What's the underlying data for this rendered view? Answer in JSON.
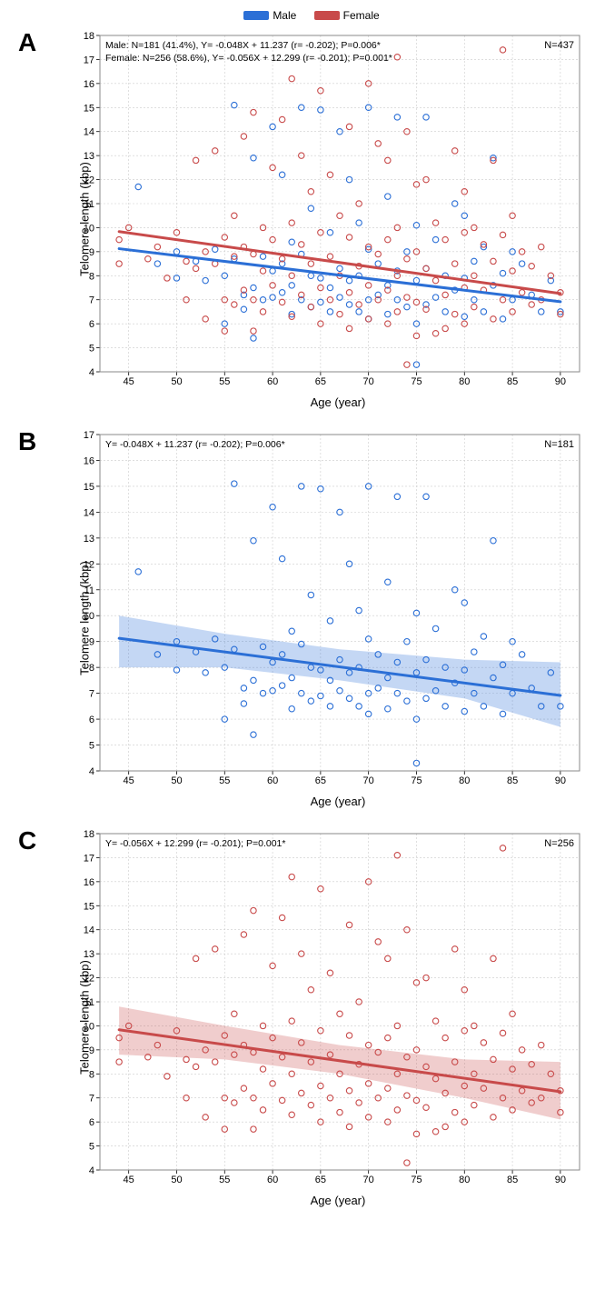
{
  "legend": {
    "male_label": "Male",
    "female_label": "Female",
    "male_color": "#2b6fd6",
    "female_color": "#c84a4a"
  },
  "common": {
    "xlabel": "Age (year)",
    "ylabel": "Telomere length (kbp)",
    "xlim": [
      42,
      92
    ],
    "xticks": [
      45,
      50,
      55,
      60,
      65,
      70,
      75,
      80,
      85,
      90
    ],
    "grid_color": "#cccccc",
    "background": "#ffffff",
    "point_radius": 3.2,
    "point_stroke_width": 1.1,
    "line_width": 3,
    "tick_fontsize": 11,
    "label_fontsize": 13
  },
  "panelA": {
    "letter": "A",
    "ylim": [
      4,
      18
    ],
    "yticks": [
      4,
      5,
      6,
      7,
      8,
      9,
      10,
      11,
      12,
      13,
      14,
      15,
      16,
      17,
      18
    ],
    "n_label": "N=437",
    "annot_line1": "Male: N=181 (41.4%), Y= -0.048X + 11.237 (r= -0.202); P=0.006*",
    "annot_line2": "Female: N=256 (58.6%), Y= -0.056X + 12.299 (r= -0.201); P=0.001*",
    "male_line": {
      "slope": -0.048,
      "intercept": 11.237,
      "color": "#2b6fd6"
    },
    "female_line": {
      "slope": -0.056,
      "intercept": 12.299,
      "color": "#c84a4a"
    },
    "male_points_color": "#2b6fd6",
    "female_points_color": "#c84a4a",
    "male_points": [
      [
        46,
        11.7
      ],
      [
        48,
        8.5
      ],
      [
        50,
        9.0
      ],
      [
        50,
        7.9
      ],
      [
        52,
        8.6
      ],
      [
        53,
        7.8
      ],
      [
        54,
        9.1
      ],
      [
        55,
        8.0
      ],
      [
        55,
        6.0
      ],
      [
        56,
        15.1
      ],
      [
        56,
        8.7
      ],
      [
        57,
        7.2
      ],
      [
        57,
        6.6
      ],
      [
        58,
        12.9
      ],
      [
        58,
        7.5
      ],
      [
        58,
        5.4
      ],
      [
        59,
        8.8
      ],
      [
        59,
        7.0
      ],
      [
        60,
        14.2
      ],
      [
        60,
        8.2
      ],
      [
        60,
        7.1
      ],
      [
        61,
        12.2
      ],
      [
        61,
        8.5
      ],
      [
        61,
        7.3
      ],
      [
        62,
        9.4
      ],
      [
        62,
        7.6
      ],
      [
        62,
        6.4
      ],
      [
        63,
        15.0
      ],
      [
        63,
        8.9
      ],
      [
        63,
        7.0
      ],
      [
        64,
        10.8
      ],
      [
        64,
        8.0
      ],
      [
        64,
        6.7
      ],
      [
        65,
        14.9
      ],
      [
        65,
        7.9
      ],
      [
        65,
        6.9
      ],
      [
        66,
        9.8
      ],
      [
        66,
        7.5
      ],
      [
        66,
        6.5
      ],
      [
        67,
        14.0
      ],
      [
        67,
        8.3
      ],
      [
        67,
        7.1
      ],
      [
        68,
        12.0
      ],
      [
        68,
        7.8
      ],
      [
        68,
        6.8
      ],
      [
        69,
        10.2
      ],
      [
        69,
        8.0
      ],
      [
        69,
        6.5
      ],
      [
        70,
        15.0
      ],
      [
        70,
        9.1
      ],
      [
        70,
        7.0
      ],
      [
        70,
        6.2
      ],
      [
        71,
        8.5
      ],
      [
        71,
        7.2
      ],
      [
        72,
        11.3
      ],
      [
        72,
        7.6
      ],
      [
        72,
        6.4
      ],
      [
        73,
        14.6
      ],
      [
        73,
        8.2
      ],
      [
        73,
        7.0
      ],
      [
        74,
        9.0
      ],
      [
        74,
        6.7
      ],
      [
        75,
        10.1
      ],
      [
        75,
        7.8
      ],
      [
        75,
        6.0
      ],
      [
        75,
        4.3
      ],
      [
        76,
        14.6
      ],
      [
        76,
        8.3
      ],
      [
        76,
        6.8
      ],
      [
        77,
        9.5
      ],
      [
        77,
        7.1
      ],
      [
        78,
        8.0
      ],
      [
        78,
        6.5
      ],
      [
        79,
        11.0
      ],
      [
        79,
        7.4
      ],
      [
        80,
        10.5
      ],
      [
        80,
        7.9
      ],
      [
        80,
        6.3
      ],
      [
        81,
        8.6
      ],
      [
        81,
        7.0
      ],
      [
        82,
        9.2
      ],
      [
        82,
        6.5
      ],
      [
        83,
        12.9
      ],
      [
        83,
        7.6
      ],
      [
        84,
        8.1
      ],
      [
        84,
        6.2
      ],
      [
        85,
        9.0
      ],
      [
        85,
        7.0
      ],
      [
        86,
        8.5
      ],
      [
        87,
        7.2
      ],
      [
        88,
        6.5
      ],
      [
        89,
        7.8
      ],
      [
        90,
        6.5
      ]
    ],
    "female_points": [
      [
        44,
        8.5
      ],
      [
        44,
        9.5
      ],
      [
        45,
        10.0
      ],
      [
        47,
        8.7
      ],
      [
        48,
        9.2
      ],
      [
        49,
        7.9
      ],
      [
        50,
        9.8
      ],
      [
        51,
        8.6
      ],
      [
        51,
        7.0
      ],
      [
        52,
        12.8
      ],
      [
        52,
        8.3
      ],
      [
        53,
        9.0
      ],
      [
        53,
        6.2
      ],
      [
        54,
        13.2
      ],
      [
        54,
        8.5
      ],
      [
        55,
        9.6
      ],
      [
        55,
        7.0
      ],
      [
        55,
        5.7
      ],
      [
        56,
        10.5
      ],
      [
        56,
        8.8
      ],
      [
        56,
        6.8
      ],
      [
        57,
        13.8
      ],
      [
        57,
        9.2
      ],
      [
        57,
        7.4
      ],
      [
        58,
        14.8
      ],
      [
        58,
        8.9
      ],
      [
        58,
        7.0
      ],
      [
        58,
        5.7
      ],
      [
        59,
        10.0
      ],
      [
        59,
        8.2
      ],
      [
        59,
        6.5
      ],
      [
        60,
        12.5
      ],
      [
        60,
        9.5
      ],
      [
        60,
        7.6
      ],
      [
        61,
        14.5
      ],
      [
        61,
        8.7
      ],
      [
        61,
        6.9
      ],
      [
        62,
        16.2
      ],
      [
        62,
        10.2
      ],
      [
        62,
        8.0
      ],
      [
        62,
        6.3
      ],
      [
        63,
        13.0
      ],
      [
        63,
        9.3
      ],
      [
        63,
        7.2
      ],
      [
        64,
        11.5
      ],
      [
        64,
        8.5
      ],
      [
        64,
        6.7
      ],
      [
        65,
        15.7
      ],
      [
        65,
        9.8
      ],
      [
        65,
        7.5
      ],
      [
        65,
        6.0
      ],
      [
        66,
        12.2
      ],
      [
        66,
        8.8
      ],
      [
        66,
        7.0
      ],
      [
        67,
        10.5
      ],
      [
        67,
        8.0
      ],
      [
        67,
        6.4
      ],
      [
        68,
        14.2
      ],
      [
        68,
        9.6
      ],
      [
        68,
        7.3
      ],
      [
        68,
        5.8
      ],
      [
        69,
        11.0
      ],
      [
        69,
        8.4
      ],
      [
        69,
        6.8
      ],
      [
        70,
        16.0
      ],
      [
        70,
        9.2
      ],
      [
        70,
        7.6
      ],
      [
        70,
        6.2
      ],
      [
        71,
        13.5
      ],
      [
        71,
        8.9
      ],
      [
        71,
        7.0
      ],
      [
        72,
        12.8
      ],
      [
        72,
        9.5
      ],
      [
        72,
        7.4
      ],
      [
        72,
        6.0
      ],
      [
        73,
        17.1
      ],
      [
        73,
        10.0
      ],
      [
        73,
        8.0
      ],
      [
        73,
        6.5
      ],
      [
        74,
        14.0
      ],
      [
        74,
        8.7
      ],
      [
        74,
        7.1
      ],
      [
        74,
        4.3
      ],
      [
        75,
        11.8
      ],
      [
        75,
        9.0
      ],
      [
        75,
        6.9
      ],
      [
        75,
        5.5
      ],
      [
        76,
        12.0
      ],
      [
        76,
        8.3
      ],
      [
        76,
        6.6
      ],
      [
        77,
        10.2
      ],
      [
        77,
        7.8
      ],
      [
        77,
        5.6
      ],
      [
        78,
        9.5
      ],
      [
        78,
        7.2
      ],
      [
        78,
        5.8
      ],
      [
        79,
        13.2
      ],
      [
        79,
        8.5
      ],
      [
        79,
        6.4
      ],
      [
        80,
        11.5
      ],
      [
        80,
        9.8
      ],
      [
        80,
        7.5
      ],
      [
        80,
        6.0
      ],
      [
        81,
        10.0
      ],
      [
        81,
        8.0
      ],
      [
        81,
        6.7
      ],
      [
        82,
        9.3
      ],
      [
        82,
        7.4
      ],
      [
        83,
        12.8
      ],
      [
        83,
        8.6
      ],
      [
        83,
        6.2
      ],
      [
        84,
        17.4
      ],
      [
        84,
        9.7
      ],
      [
        84,
        7.0
      ],
      [
        85,
        10.5
      ],
      [
        85,
        8.2
      ],
      [
        85,
        6.5
      ],
      [
        86,
        9.0
      ],
      [
        86,
        7.3
      ],
      [
        87,
        8.4
      ],
      [
        87,
        6.8
      ],
      [
        88,
        9.2
      ],
      [
        88,
        7.0
      ],
      [
        89,
        8.0
      ],
      [
        90,
        6.4
      ],
      [
        90,
        7.3
      ]
    ]
  },
  "panelB": {
    "letter": "B",
    "ylim": [
      4,
      17
    ],
    "yticks": [
      4,
      5,
      6,
      7,
      8,
      9,
      10,
      11,
      12,
      13,
      14,
      15,
      16,
      17
    ],
    "n_label": "N=181",
    "annot_line1": "Y= -0.048X + 11.237 (r= -0.202); P=0.006*",
    "line": {
      "slope": -0.048,
      "intercept": 11.237,
      "color": "#2b6fd6"
    },
    "ci_color": "#2b6fd6",
    "ci_opacity": 0.28,
    "ci_upper": [
      [
        44,
        10.0
      ],
      [
        55,
        9.3
      ],
      [
        67,
        8.7
      ],
      [
        80,
        8.3
      ],
      [
        90,
        8.2
      ]
    ],
    "ci_lower": [
      [
        44,
        8.0
      ],
      [
        55,
        8.0
      ],
      [
        67,
        7.5
      ],
      [
        80,
        6.8
      ],
      [
        90,
        5.7
      ]
    ],
    "points_color": "#2b6fd6"
  },
  "panelC": {
    "letter": "C",
    "ylim": [
      4,
      18
    ],
    "yticks": [
      4,
      5,
      6,
      7,
      8,
      9,
      10,
      11,
      12,
      13,
      14,
      15,
      16,
      17,
      18
    ],
    "n_label": "N=256",
    "annot_line1": "Y= -0.056X + 12.299 (r= -0.201); P=0.001*",
    "line": {
      "slope": -0.056,
      "intercept": 12.299,
      "color": "#c84a4a"
    },
    "ci_color": "#c84a4a",
    "ci_opacity": 0.28,
    "ci_upper": [
      [
        44,
        10.8
      ],
      [
        55,
        10.0
      ],
      [
        67,
        9.2
      ],
      [
        80,
        8.6
      ],
      [
        90,
        8.5
      ]
    ],
    "ci_lower": [
      [
        44,
        8.8
      ],
      [
        55,
        8.6
      ],
      [
        67,
        8.0
      ],
      [
        80,
        7.0
      ],
      [
        90,
        6.1
      ]
    ],
    "points_color": "#c84a4a"
  }
}
